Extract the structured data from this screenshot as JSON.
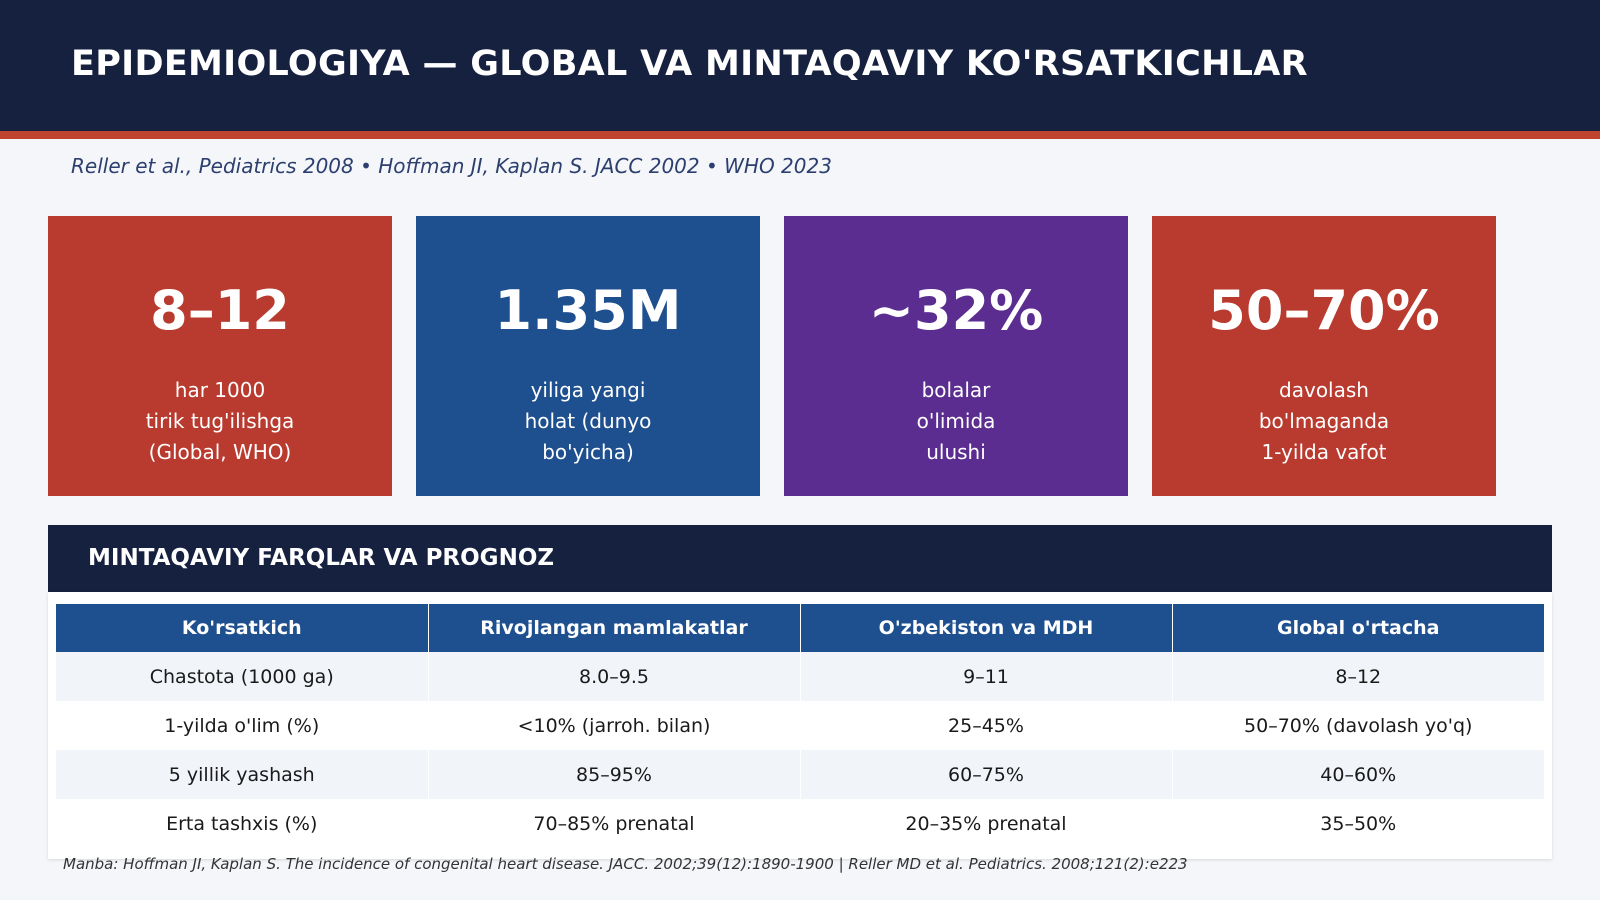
{
  "header": {
    "title": "EPIDEMIOLOGIYA — GLOBAL VA MINTAQAVIY KO'RSATKICHLAR",
    "background": "#15213f",
    "accent_color": "#c0432f"
  },
  "subtitle": "Reller et al., Pediatrics 2008 • Hoffman JI, Kaplan S. JACC 2002 • WHO 2023",
  "stat_cards": [
    {
      "value": "8–12",
      "description": "har 1000\ntirik tug'ilishga\n(Global, WHO)",
      "color": "#b93a2e"
    },
    {
      "value": "1.35M",
      "description": "yiliga yangi\nholat (dunyo\nbo'yicha)",
      "color": "#1e4f8e"
    },
    {
      "value": "~32%",
      "description": "bolalar\no'limida\nulushi",
      "color": "#5b2d90"
    },
    {
      "value": "50–70%",
      "description": "davolash\nbo'lmaganda\n1-yilda vafot",
      "color": "#b93a2e"
    }
  ],
  "section": {
    "title": "MINTAQAVIY FARQLAR VA PROGNOZ"
  },
  "table": {
    "headers": [
      "Ko'rsatkich",
      "Rivojlangan mamlakatlar",
      "O'zbekiston va MDH",
      "Global o'rtacha"
    ],
    "rows": [
      [
        "Chastota (1000 ga)",
        "8.0–9.5",
        "9–11",
        "8–12"
      ],
      [
        "1-yilda o'lim (%)",
        "<10% (jarroh. bilan)",
        "25–45%",
        "50–70% (davolash yo'q)"
      ],
      [
        "5 yillik yashash",
        "85–95%",
        "60–75%",
        "40–60%"
      ],
      [
        "Erta tashxis (%)",
        "70–85% prenatal",
        "20–35% prenatal",
        "35–50%"
      ]
    ],
    "header_color": "#1e4f8e"
  },
  "footnote": "Manba: Hoffman JI, Kaplan S. The incidence of congenital heart disease. JACC. 2002;39(12):1890-1900 | Reller MD et al. Pediatrics. 2008;121(2):e223"
}
